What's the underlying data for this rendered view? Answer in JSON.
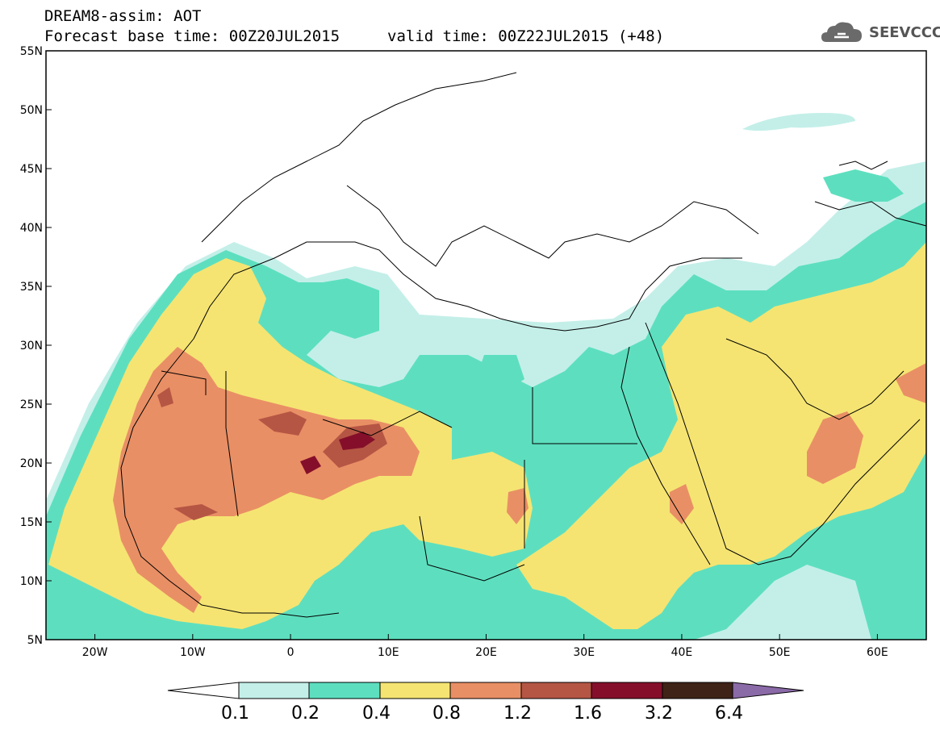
{
  "header": {
    "title": "DREAM8-assim: AOT",
    "base_time": "Forecast base time: 00Z20JUL2015",
    "valid_time": "valid time: 00Z22JUL2015 (+48)"
  },
  "logo": {
    "text": "SEEVCCC",
    "icon": "cloud-icon",
    "color": "#555555"
  },
  "map": {
    "projection": "lat-lon",
    "lon_range": [
      -25,
      65
    ],
    "lat_range": [
      5,
      55
    ],
    "lon_ticks": [
      "20W",
      "10W",
      "0",
      "10E",
      "20E",
      "30E",
      "40E",
      "50E",
      "60E"
    ],
    "lat_ticks": [
      "55N",
      "50N",
      "45N",
      "40N",
      "35N",
      "30N",
      "25N",
      "20N",
      "15N",
      "10N",
      "5N"
    ]
  },
  "colorbar": {
    "labels": [
      "0.1",
      "0.2",
      "0.4",
      "0.8",
      "1.2",
      "1.6",
      "3.2",
      "6.4"
    ],
    "colors": [
      "#ffffff",
      "#c4efe9",
      "#5ddfbf",
      "#f5e472",
      "#e98f65",
      "#b55644",
      "#850f2a",
      "#3f2316",
      "#8b6aa8"
    ]
  }
}
